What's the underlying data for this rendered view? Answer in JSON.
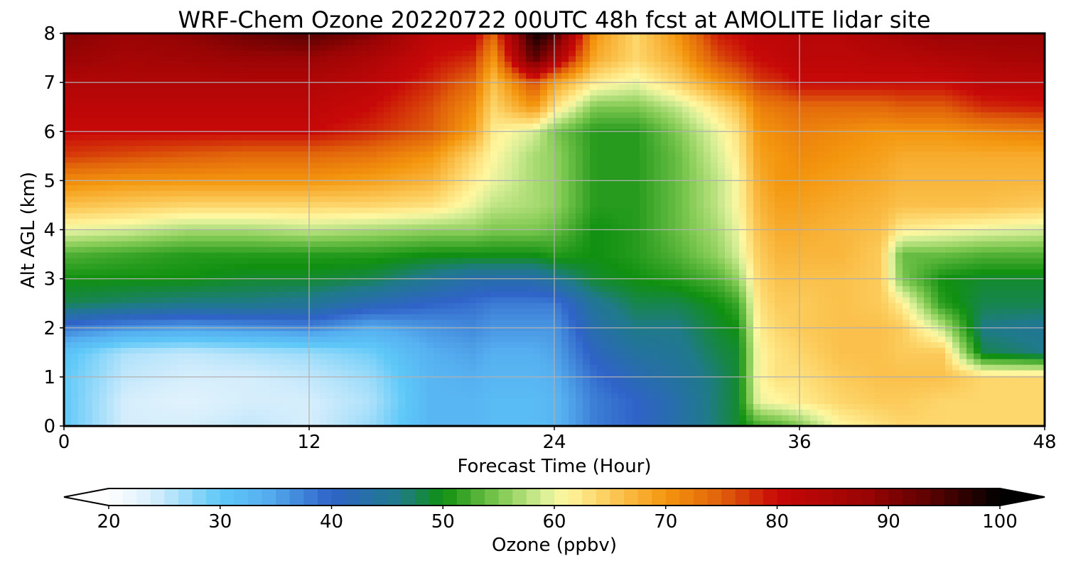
{
  "chart_data": {
    "type": "heatmap",
    "title": "WRF-Chem Ozone  20220722 00UTC 48h fcst at AMOLITE lidar site",
    "xlabel": "Forecast Time (Hour)",
    "ylabel": "Alt AGL (km)",
    "xlim": [
      0,
      48
    ],
    "ylim": [
      0,
      8
    ],
    "xticks": [
      0,
      12,
      24,
      36,
      48
    ],
    "yticks": [
      0,
      1,
      2,
      3,
      4,
      5,
      6,
      7,
      8
    ],
    "grid": true,
    "colorbar": {
      "label": "Ozone  (ppbv)",
      "range": [
        20,
        100
      ],
      "ticks": [
        20,
        30,
        40,
        50,
        60,
        70,
        80,
        90,
        100
      ],
      "extend": "both",
      "stops": [
        {
          "value": 20,
          "color": "#ffffff"
        },
        {
          "value": 24,
          "color": "#d6eefc"
        },
        {
          "value": 30,
          "color": "#5ec8f8"
        },
        {
          "value": 34,
          "color": "#56b0f0"
        },
        {
          "value": 40,
          "color": "#2f63c8"
        },
        {
          "value": 46,
          "color": "#1f7a8a"
        },
        {
          "value": 50,
          "color": "#109010"
        },
        {
          "value": 55,
          "color": "#7dc850"
        },
        {
          "value": 59,
          "color": "#d6ee96"
        },
        {
          "value": 61,
          "color": "#fff7a0"
        },
        {
          "value": 65,
          "color": "#fccb5a"
        },
        {
          "value": 70,
          "color": "#f4960e"
        },
        {
          "value": 75,
          "color": "#e0600a"
        },
        {
          "value": 80,
          "color": "#c80808"
        },
        {
          "value": 88,
          "color": "#9a0404"
        },
        {
          "value": 94,
          "color": "#580202"
        },
        {
          "value": 100,
          "color": "#000000"
        }
      ]
    },
    "x": [
      0,
      3,
      6,
      9,
      12,
      15,
      18,
      20,
      21,
      23,
      24,
      26,
      28,
      30,
      32,
      33,
      34,
      35,
      36,
      38,
      40,
      41,
      43,
      45,
      48
    ],
    "y": [
      0,
      0.5,
      1,
      1.5,
      2,
      2.5,
      3,
      3.5,
      4,
      4.5,
      5,
      5.5,
      6,
      6.5,
      7,
      7.5,
      8
    ],
    "z": [
      [
        30,
        24,
        24,
        25,
        24,
        27,
        33,
        33,
        32,
        32,
        33,
        38,
        40,
        43,
        47,
        49,
        52,
        53,
        55,
        61,
        63,
        64,
        64,
        64,
        64
      ],
      [
        30,
        24,
        23,
        24,
        24,
        26,
        33,
        33,
        32,
        32,
        33,
        38,
        40,
        43,
        47,
        49,
        60,
        61,
        62,
        64,
        65,
        65,
        64,
        64,
        64
      ],
      [
        30,
        25,
        24,
        24,
        25,
        27,
        33,
        34,
        33,
        33,
        34,
        39,
        42,
        44,
        47,
        49,
        61,
        63,
        63,
        65,
        66,
        66,
        66,
        64,
        64
      ],
      [
        31,
        26,
        25,
        26,
        27,
        29,
        34,
        35,
        34,
        34,
        35,
        41,
        44,
        45,
        48,
        49,
        61,
        63,
        64,
        66,
        66,
        65,
        65,
        48,
        46
      ],
      [
        38,
        36,
        35,
        36,
        37,
        34,
        36,
        37,
        36,
        36,
        36,
        43,
        46,
        46,
        49,
        50,
        62,
        64,
        65,
        66,
        66,
        65,
        58,
        46,
        45
      ],
      [
        48,
        47,
        46,
        46,
        45,
        42,
        40,
        39,
        38,
        38,
        38,
        45,
        48,
        48,
        50,
        52,
        63,
        65,
        65,
        66,
        65,
        62,
        51,
        48,
        48
      ],
      [
        50,
        50,
        50,
        49,
        49,
        48,
        45,
        43,
        43,
        43,
        45,
        49,
        50,
        51,
        53,
        56,
        64,
        66,
        66,
        66,
        65,
        55,
        50,
        49,
        49
      ],
      [
        53,
        52,
        51,
        51,
        51,
        51,
        50,
        50,
        50,
        50,
        51,
        50,
        51,
        53,
        56,
        59,
        65,
        67,
        67,
        67,
        65,
        54,
        54,
        53,
        53
      ],
      [
        60,
        59,
        57,
        57,
        58,
        57,
        56,
        56,
        55,
        55,
        54,
        50,
        51,
        54,
        57,
        60,
        66,
        68,
        68,
        67,
        66,
        62,
        61,
        60,
        59
      ],
      [
        66,
        65,
        64,
        64,
        64,
        64,
        63,
        60,
        58,
        57,
        56,
        51,
        51,
        54,
        58,
        61,
        67,
        69,
        69,
        68,
        67,
        66,
        66,
        66,
        65
      ],
      [
        71,
        70,
        70,
        70,
        70,
        69,
        67,
        62,
        60,
        57,
        56,
        51,
        51,
        54,
        58,
        61,
        68,
        70,
        70,
        69,
        68,
        67,
        67,
        67,
        67
      ],
      [
        77,
        76,
        75,
        74,
        74,
        73,
        70,
        64,
        61,
        57,
        56,
        51,
        51,
        54,
        59,
        62,
        69,
        70,
        71,
        70,
        69,
        68,
        68,
        68,
        68
      ],
      [
        80,
        80,
        80,
        80,
        80,
        78,
        75,
        69,
        62,
        59,
        55,
        51,
        51,
        55,
        60,
        63,
        70,
        71,
        72,
        71,
        70,
        70,
        70,
        71,
        72
      ],
      [
        82,
        82,
        82,
        82,
        82,
        80,
        76,
        71,
        64,
        70,
        63,
        55,
        55,
        58,
        63,
        66,
        72,
        73,
        74,
        74,
        74,
        75,
        75,
        78,
        79
      ],
      [
        84,
        84,
        84,
        84,
        84,
        82,
        78,
        74,
        66,
        76,
        69,
        62,
        60,
        64,
        70,
        73,
        77,
        78,
        80,
        80,
        80,
        80,
        80,
        82,
        82
      ],
      [
        88,
        86,
        87,
        88,
        88,
        85,
        80,
        78,
        70,
        94,
        86,
        68,
        64,
        68,
        76,
        78,
        80,
        81,
        82,
        82,
        83,
        83,
        84,
        85,
        86
      ],
      [
        90,
        88,
        89,
        92,
        94,
        90,
        82,
        82,
        74,
        99,
        95,
        70,
        64,
        70,
        79,
        80,
        82,
        82,
        83,
        83,
        85,
        86,
        88,
        88,
        88
      ]
    ]
  }
}
